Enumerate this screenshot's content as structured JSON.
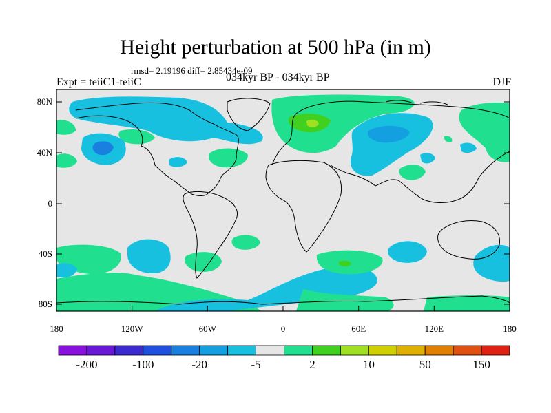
{
  "title": "Height perturbation at 500 hPa (in m)",
  "stats": "rmsd= 2.19196 diff= 2.85434e-09",
  "experiment": "Expt = teiiC1-teiiC",
  "period": "034kyr BP - 034kyr BP",
  "season": "DJF",
  "lat_ticks": [
    "80N",
    "40N",
    "0",
    "40S",
    "80S"
  ],
  "lon_ticks": [
    "180",
    "120W",
    "60W",
    "0",
    "60E",
    "120E",
    "180"
  ],
  "colorbar": {
    "colors": [
      "#8a10e0",
      "#6a18d8",
      "#3b2ad0",
      "#2050e0",
      "#1a80e0",
      "#14a0e0",
      "#18c0e0",
      "#e6e6e6",
      "#20e090",
      "#40d020",
      "#a0e020",
      "#d0d000",
      "#e0b000",
      "#e08000",
      "#e05010",
      "#e02010"
    ],
    "labels": [
      "-200",
      "-100",
      "-20",
      "-5",
      "2",
      "10",
      "50",
      "150"
    ]
  },
  "chart_data": {
    "type": "map",
    "title": "Height perturbation at 500 hPa (in m)",
    "xlim": [
      -180,
      180
    ],
    "ylim": [
      -90,
      90
    ],
    "lat_ticks": [
      "80N",
      "40N",
      "0",
      "40S",
      "80S"
    ],
    "lon_ticks": [
      "180",
      "120W",
      "60W",
      "0",
      "60E",
      "120E",
      "180"
    ],
    "colorbar_labels": [
      "-200",
      "-100",
      "-20",
      "-5",
      "2",
      "10",
      "50",
      "150"
    ]
  }
}
